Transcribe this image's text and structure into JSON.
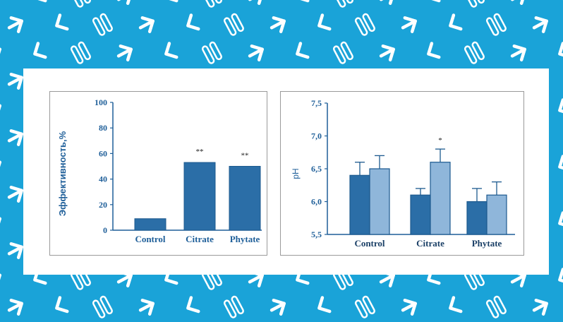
{
  "colors": {
    "background": "#1aa3d8",
    "pattern": "#ffffff",
    "bar_dark": "#2b6ea7",
    "bar_light": "#8fb6da",
    "label": "#1f5f99"
  },
  "chart_data": [
    {
      "type": "bar",
      "title": "",
      "xlabel": "",
      "ylabel": "Эффективность,%",
      "ylim": [
        0,
        100
      ],
      "yticks": [
        "0",
        "20",
        "40",
        "60",
        "80",
        "100"
      ],
      "categories": [
        "Control",
        "Citrate",
        "Phytate"
      ],
      "values": [
        9,
        53,
        50
      ],
      "annotations": [
        "",
        "**",
        "**"
      ]
    },
    {
      "type": "bar",
      "title": "",
      "xlabel": "",
      "ylabel": "pH",
      "ylim": [
        5.5,
        7.5
      ],
      "yticks": [
        "5,5",
        "6,0",
        "6,5",
        "7,0",
        "7,5"
      ],
      "categories": [
        "Control",
        "Citrate",
        "Phytate"
      ],
      "series": [
        {
          "values": [
            6.4,
            6.1,
            6.0
          ],
          "errors": [
            0.2,
            0.1,
            0.2
          ]
        },
        {
          "values": [
            6.5,
            6.6,
            6.1
          ],
          "errors": [
            0.2,
            0.2,
            0.2
          ]
        }
      ],
      "annotations": [
        "",
        "*",
        ""
      ]
    }
  ]
}
